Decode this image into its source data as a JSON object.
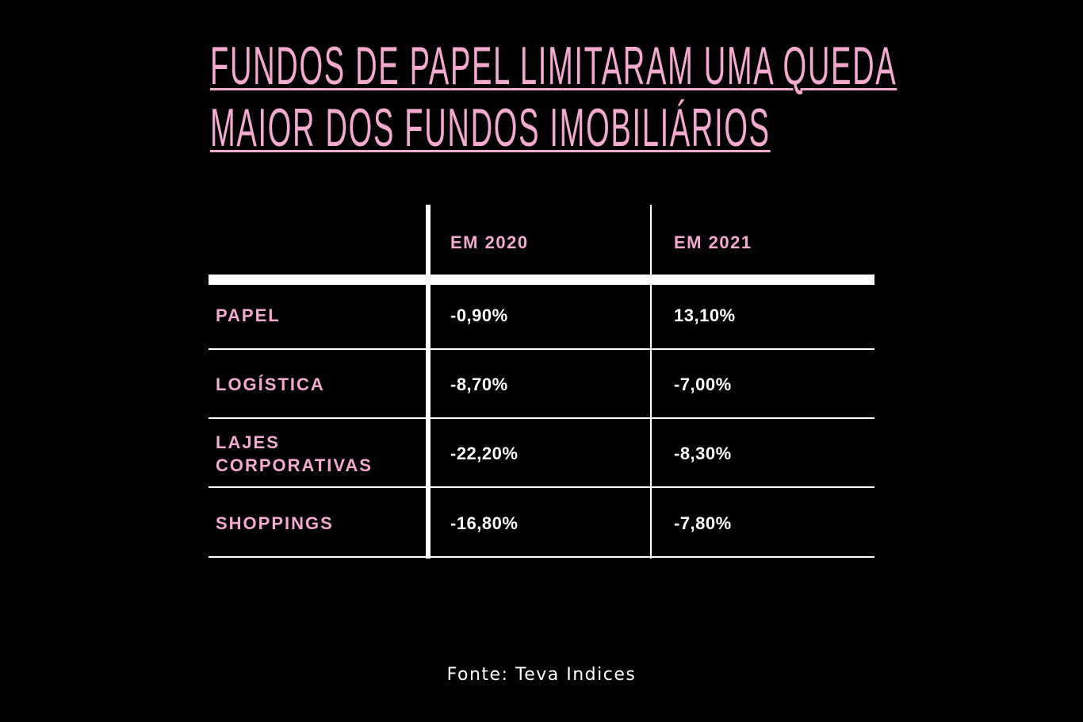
{
  "title_lines": [
    "FUNDOS DE PAPEL LIMITARAM UMA QUEDA",
    "MAIOR DOS FUNDOS IMOBILIÁRIOS"
  ],
  "source": "Fonte: Teva Indices",
  "colors": {
    "background": "#000000",
    "accent_pink": "#f4a9cf",
    "value_text": "#ffffff",
    "rules": "#ffffff"
  },
  "chart_data": {
    "type": "table",
    "title": "FUNDOS DE PAPEL LIMITARAM UMA QUEDA MAIOR DOS FUNDOS IMOBILIÁRIOS",
    "columns": [
      "",
      "EM 2020",
      "EM 2021"
    ],
    "rows": [
      {
        "label_lines": [
          "PAPEL"
        ],
        "values": [
          "-0,90%",
          "13,10%"
        ],
        "numeric": [
          -0.9,
          13.1
        ]
      },
      {
        "label_lines": [
          "LOGÍSTICA"
        ],
        "values": [
          "-8,70%",
          "-7,00%"
        ],
        "numeric": [
          -8.7,
          -7.0
        ]
      },
      {
        "label_lines": [
          "LAJES",
          "CORPORATIVAS"
        ],
        "values": [
          "-22,20%",
          "-8,30%"
        ],
        "numeric": [
          -22.2,
          -8.3
        ]
      },
      {
        "label_lines": [
          "SHOPPINGS"
        ],
        "values": [
          "-16,80%",
          "-7,80%"
        ],
        "numeric": [
          -16.8,
          -7.8
        ]
      }
    ],
    "source": "Fonte: Teva Indices"
  }
}
